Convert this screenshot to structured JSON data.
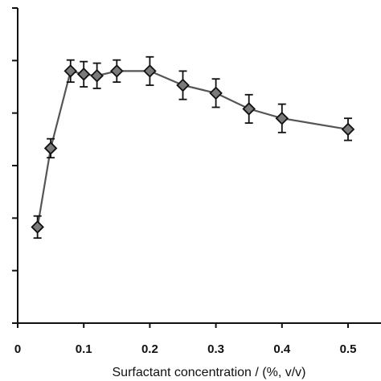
{
  "chart_data": {
    "type": "line",
    "title": "",
    "xlabel": "Surfactant concentration / (%, v/v)",
    "ylabel": "",
    "xlim": [
      0,
      0.55
    ],
    "ylim": [
      0,
      100
    ],
    "x_ticks": [
      "0",
      "0.1",
      "0.2",
      "0.3",
      "0.4",
      "0.5"
    ],
    "x_tick_values": [
      0,
      0.1,
      0.2,
      0.3,
      0.4,
      0.5
    ],
    "y_tick_values": [
      0,
      16.67,
      33.33,
      50,
      66.67,
      83.33,
      100
    ],
    "y_tick_labels_visible": false,
    "grid": false,
    "legend": "none",
    "marker": "diamond",
    "marker_color": "#7a7a7a",
    "line_color": "#555555",
    "series": [
      {
        "x": [
          0.03,
          0.05,
          0.08,
          0.1,
          0.12,
          0.15,
          0.2,
          0.25,
          0.3,
          0.35,
          0.4,
          0.5
        ],
        "y": [
          30.5,
          55.5,
          80,
          79,
          78.5,
          80,
          80,
          75.5,
          73,
          68,
          65,
          61.5
        ],
        "error": [
          3.5,
          3,
          3.5,
          4,
          4,
          3.5,
          4.5,
          4.5,
          4.5,
          4.5,
          4.5,
          3.5
        ]
      }
    ]
  }
}
